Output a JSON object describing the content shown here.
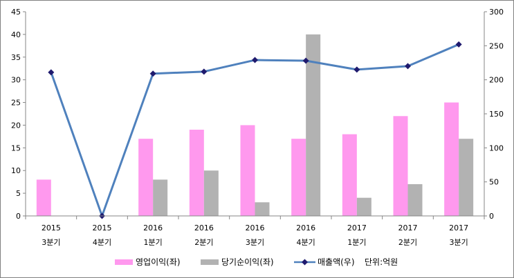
{
  "chart_data": {
    "type": "bar",
    "categories": [
      [
        "2015",
        "3분기"
      ],
      [
        "2015",
        "4분기"
      ],
      [
        "2016",
        "1분기"
      ],
      [
        "2016",
        "2분기"
      ],
      [
        "2016",
        "3분기"
      ],
      [
        "2016",
        "4분기"
      ],
      [
        "2017",
        "1분기"
      ],
      [
        "2017",
        "2분기"
      ],
      [
        "2017",
        "3분기"
      ]
    ],
    "series": [
      {
        "name": "영업이익(좌)",
        "type": "bar",
        "axis": "left",
        "color": "#ff99ee",
        "values": [
          8,
          0,
          17,
          19,
          20,
          17,
          18,
          22,
          25
        ]
      },
      {
        "name": "당기순이익(좌)",
        "type": "bar",
        "axis": "left",
        "color": "#b2b2b2",
        "values": [
          0,
          0,
          8,
          10,
          3,
          40,
          4,
          7,
          17
        ]
      },
      {
        "name": "매출액(우)",
        "type": "line",
        "axis": "right",
        "color": "#4f81bd",
        "marker_color": "#1f1a6e",
        "values": [
          211,
          0,
          209,
          212,
          229,
          228,
          215,
          220,
          252
        ]
      }
    ],
    "left_axis": {
      "min": 0,
      "max": 45,
      "step": 5
    },
    "right_axis": {
      "min": 0,
      "max": 300,
      "step": 50
    },
    "unit_note": "단위:억원",
    "legend_position": "bottom",
    "grid": false
  }
}
